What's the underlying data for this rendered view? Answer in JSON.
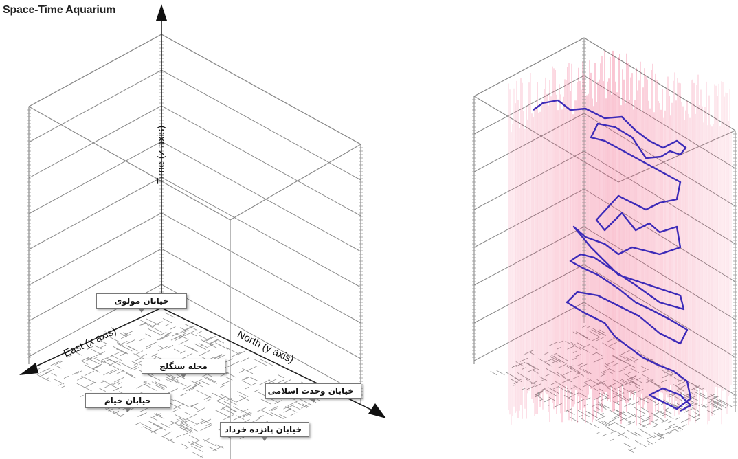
{
  "title": "Space-Time Aquarium",
  "axes": {
    "time": "Time (z axis)",
    "east": "East (x axis)",
    "north": "North (y axis)"
  },
  "callouts": [
    {
      "id": "molavi",
      "text": "خیابان مولوی"
    },
    {
      "id": "sangelaj",
      "text": "محله سنگلج"
    },
    {
      "id": "khayyam",
      "text": "خیابان خیام"
    },
    {
      "id": "vahdat",
      "text": "خیابان وحدت اسلامی"
    },
    {
      "id": "panzdah",
      "text": "خیابان پانزده خرداد"
    }
  ],
  "colors": {
    "grid": "#888888",
    "street": "#9a9a9a",
    "density": "#f0507a",
    "trajectory": "#3d2bb8",
    "axis": "#222222"
  }
}
